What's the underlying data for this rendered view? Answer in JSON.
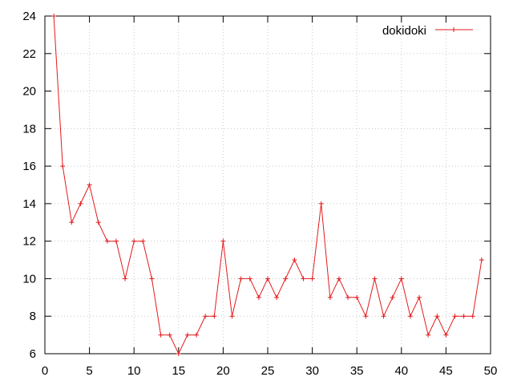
{
  "chart_data": {
    "type": "line",
    "title": "",
    "xlabel": "",
    "ylabel": "",
    "xlim": [
      0,
      50
    ],
    "ylim": [
      6,
      24
    ],
    "xticks": [
      0,
      5,
      10,
      15,
      20,
      25,
      30,
      35,
      40,
      45,
      50
    ],
    "yticks": [
      6,
      8,
      10,
      12,
      14,
      16,
      18,
      20,
      22,
      24
    ],
    "grid": true,
    "legend_position": "top-right",
    "series": [
      {
        "name": "dokidoki",
        "color": "#e41a1c",
        "marker": "plus",
        "x": [
          1,
          2,
          3,
          4,
          5,
          6,
          7,
          8,
          9,
          10,
          11,
          12,
          13,
          14,
          15,
          16,
          17,
          18,
          19,
          20,
          21,
          22,
          23,
          24,
          25,
          26,
          27,
          28,
          29,
          30,
          31,
          32,
          33,
          34,
          35,
          36,
          37,
          38,
          39,
          40,
          41,
          42,
          43,
          44,
          45,
          46,
          47,
          48,
          49
        ],
        "y": [
          24,
          16,
          13,
          14,
          15,
          13,
          12,
          12,
          10,
          12,
          12,
          10,
          7,
          7,
          6,
          7,
          7,
          8,
          8,
          12,
          8,
          10,
          10,
          9,
          10,
          9,
          10,
          11,
          10,
          10,
          14,
          9,
          10,
          9,
          9,
          8,
          10,
          8,
          9,
          10,
          8,
          9,
          7,
          8,
          7,
          8,
          8,
          8,
          11
        ]
      }
    ]
  }
}
